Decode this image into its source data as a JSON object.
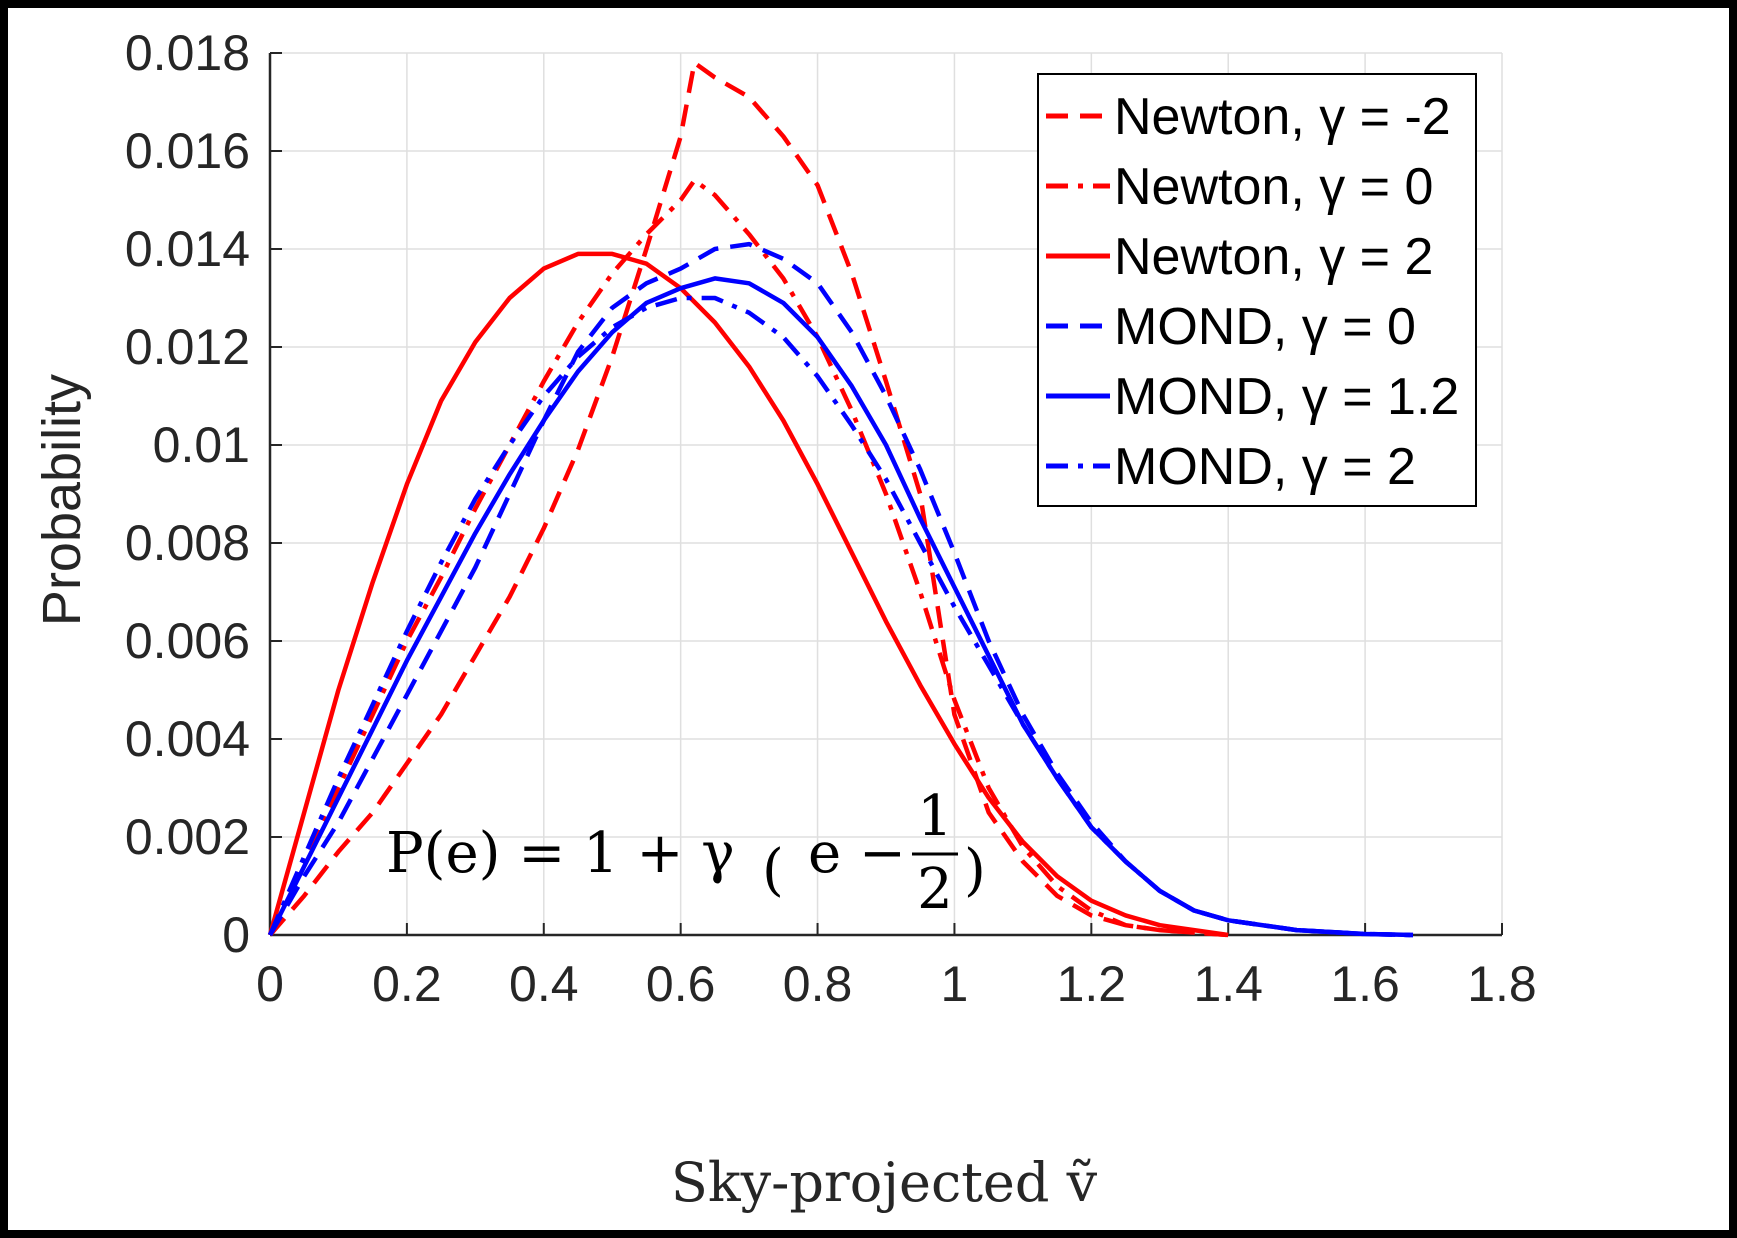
{
  "chart_data": {
    "type": "line",
    "title": "",
    "xlabel": "Sky-projected ṽ",
    "ylabel": "Probability",
    "xlim": [
      0,
      1.8
    ],
    "ylim": [
      0,
      0.018
    ],
    "xticks": [
      "0",
      "0.2",
      "0.4",
      "0.6",
      "0.8",
      "1",
      "1.2",
      "1.4",
      "1.6",
      "1.8"
    ],
    "yticks": [
      "0",
      "0.002",
      "0.004",
      "0.006",
      "0.008",
      "0.01",
      "0.012",
      "0.014",
      "0.016",
      "0.018"
    ],
    "grid": true,
    "legend_position": "top-right",
    "annotation": {
      "lhs": "P(e) = 1 + γ",
      "paren_open": "(",
      "inner": "e −",
      "frac_num": "1",
      "frac_den": "2",
      "paren_close": ")"
    },
    "series": [
      {
        "name": "Newton, γ = -2",
        "color": "#ff0000",
        "dash": "dashed",
        "x": [
          0,
          0.05,
          0.1,
          0.15,
          0.2,
          0.25,
          0.3,
          0.35,
          0.4,
          0.45,
          0.5,
          0.55,
          0.6,
          0.62,
          0.65,
          0.7,
          0.75,
          0.8,
          0.85,
          0.9,
          0.95,
          1.0,
          1.05,
          1.1,
          1.15,
          1.2,
          1.25,
          1.3,
          1.35,
          1.4
        ],
        "y": [
          0,
          0.0008,
          0.0017,
          0.0025,
          0.0035,
          0.0045,
          0.0057,
          0.0069,
          0.0083,
          0.0099,
          0.0118,
          0.014,
          0.0163,
          0.0178,
          0.0175,
          0.0171,
          0.0163,
          0.0153,
          0.0135,
          0.0113,
          0.009,
          0.0045,
          0.0025,
          0.0015,
          0.0008,
          0.0004,
          0.0002,
          0.0001,
          5e-05,
          0
        ]
      },
      {
        "name": "Newton, γ = 0",
        "color": "#ff0000",
        "dash": "dashdot",
        "x": [
          0,
          0.05,
          0.1,
          0.15,
          0.2,
          0.25,
          0.3,
          0.35,
          0.4,
          0.45,
          0.5,
          0.55,
          0.6,
          0.62,
          0.65,
          0.7,
          0.75,
          0.8,
          0.85,
          0.9,
          0.95,
          1.0,
          1.05,
          1.1,
          1.15,
          1.2,
          1.25,
          1.3,
          1.35,
          1.4
        ],
        "y": [
          0,
          0.0015,
          0.003,
          0.0045,
          0.006,
          0.0073,
          0.0087,
          0.01,
          0.0113,
          0.0125,
          0.0135,
          0.0143,
          0.015,
          0.0154,
          0.0151,
          0.0143,
          0.0134,
          0.0122,
          0.0107,
          0.009,
          0.007,
          0.0048,
          0.003,
          0.0018,
          0.001,
          0.0005,
          0.0002,
          0.0001,
          5e-05,
          0
        ]
      },
      {
        "name": "Newton, γ = 2",
        "color": "#ff0000",
        "dash": "solid",
        "x": [
          0,
          0.05,
          0.1,
          0.15,
          0.2,
          0.25,
          0.3,
          0.35,
          0.4,
          0.45,
          0.5,
          0.55,
          0.6,
          0.65,
          0.7,
          0.75,
          0.8,
          0.85,
          0.9,
          0.95,
          1.0,
          1.05,
          1.1,
          1.15,
          1.2,
          1.25,
          1.3,
          1.35,
          1.4
        ],
        "y": [
          0,
          0.0025,
          0.005,
          0.0072,
          0.0092,
          0.0109,
          0.0121,
          0.013,
          0.0136,
          0.0139,
          0.0139,
          0.0137,
          0.0132,
          0.0125,
          0.0116,
          0.0105,
          0.0092,
          0.0078,
          0.0064,
          0.0051,
          0.0039,
          0.0028,
          0.0019,
          0.0012,
          0.0007,
          0.0004,
          0.0002,
          0.0001,
          0
        ]
      },
      {
        "name": "MOND, γ = 0",
        "color": "#0000ff",
        "dash": "dashed",
        "x": [
          0,
          0.05,
          0.1,
          0.15,
          0.2,
          0.25,
          0.3,
          0.35,
          0.4,
          0.45,
          0.5,
          0.55,
          0.6,
          0.65,
          0.7,
          0.75,
          0.8,
          0.85,
          0.9,
          0.95,
          1.0,
          1.05,
          1.1,
          1.15,
          1.2,
          1.25,
          1.3,
          1.35,
          1.4,
          1.5,
          1.6,
          1.67
        ],
        "y": [
          0,
          0.0012,
          0.0023,
          0.0036,
          0.0049,
          0.0062,
          0.0075,
          0.009,
          0.0105,
          0.0119,
          0.0128,
          0.0133,
          0.0136,
          0.014,
          0.0141,
          0.0138,
          0.0133,
          0.0123,
          0.011,
          0.0095,
          0.0078,
          0.006,
          0.0045,
          0.0033,
          0.0023,
          0.0015,
          0.0009,
          0.0005,
          0.0003,
          0.0001,
          2e-05,
          0
        ]
      },
      {
        "name": "MOND, γ = 1.2",
        "color": "#0000ff",
        "dash": "solid",
        "x": [
          0,
          0.05,
          0.1,
          0.15,
          0.2,
          0.25,
          0.3,
          0.35,
          0.4,
          0.45,
          0.5,
          0.55,
          0.6,
          0.65,
          0.7,
          0.75,
          0.8,
          0.85,
          0.9,
          0.95,
          1.0,
          1.05,
          1.1,
          1.15,
          1.2,
          1.25,
          1.3,
          1.35,
          1.4,
          1.5,
          1.6,
          1.67
        ],
        "y": [
          0,
          0.0014,
          0.0028,
          0.0042,
          0.0056,
          0.0069,
          0.0082,
          0.0094,
          0.0105,
          0.0115,
          0.0123,
          0.0129,
          0.0132,
          0.0134,
          0.0133,
          0.0129,
          0.0122,
          0.0112,
          0.01,
          0.0085,
          0.0071,
          0.0057,
          0.0043,
          0.0032,
          0.0022,
          0.0015,
          0.0009,
          0.0005,
          0.0003,
          0.0001,
          2e-05,
          0
        ]
      },
      {
        "name": "MOND, γ = 2",
        "color": "#0000ff",
        "dash": "dashdot",
        "x": [
          0,
          0.05,
          0.1,
          0.15,
          0.2,
          0.25,
          0.3,
          0.35,
          0.4,
          0.45,
          0.5,
          0.55,
          0.6,
          0.65,
          0.7,
          0.75,
          0.8,
          0.85,
          0.9,
          0.95,
          1.0,
          1.05,
          1.1,
          1.15,
          1.2,
          1.25,
          1.3,
          1.35,
          1.4,
          1.5,
          1.6,
          1.67
        ],
        "y": [
          0,
          0.0016,
          0.0032,
          0.0047,
          0.0062,
          0.0076,
          0.0089,
          0.01,
          0.011,
          0.0118,
          0.0124,
          0.0128,
          0.013,
          0.013,
          0.0127,
          0.0122,
          0.0114,
          0.0104,
          0.0093,
          0.008,
          0.0067,
          0.0055,
          0.0043,
          0.0032,
          0.0022,
          0.0015,
          0.0009,
          0.0005,
          0.0003,
          0.0001,
          2e-05,
          0
        ]
      }
    ]
  }
}
